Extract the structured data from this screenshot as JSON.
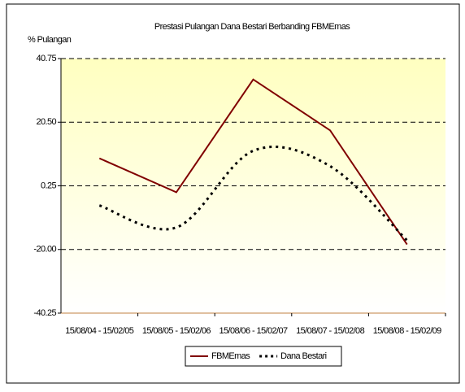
{
  "chart_data": {
    "type": "line",
    "title": "Prestasi Pulangan Dana Bestari Berbanding FBMEmas",
    "y_label": "% Pulangan",
    "categories": [
      "15/08/04 - 15/02/05",
      "15/08/05 - 15/02/06",
      "15/08/06 - 15/02/07",
      "15/08/07 - 15/02/08",
      "15/08/08 - 15/02/09"
    ],
    "series": [
      {
        "name": "FBMEmas",
        "color": "#800000",
        "style": "solid",
        "smooth": false,
        "values": [
          9.0,
          -1.8,
          34.1,
          17.9,
          -18.4
        ]
      },
      {
        "name": "Dana Bestari",
        "color": "#000000",
        "style": "dotted",
        "smooth": true,
        "values": [
          -6.0,
          -13.0,
          11.4,
          6.5,
          -17.1
        ]
      }
    ],
    "ylim": [
      -40.25,
      40.75
    ],
    "yticks": [
      -40.25,
      {
        "value": -20,
        "label": "-20.00"
      },
      0.25,
      {
        "value": 20.5,
        "label": "20.50"
      },
      40.75
    ],
    "grid": true,
    "legend": "bottom"
  }
}
